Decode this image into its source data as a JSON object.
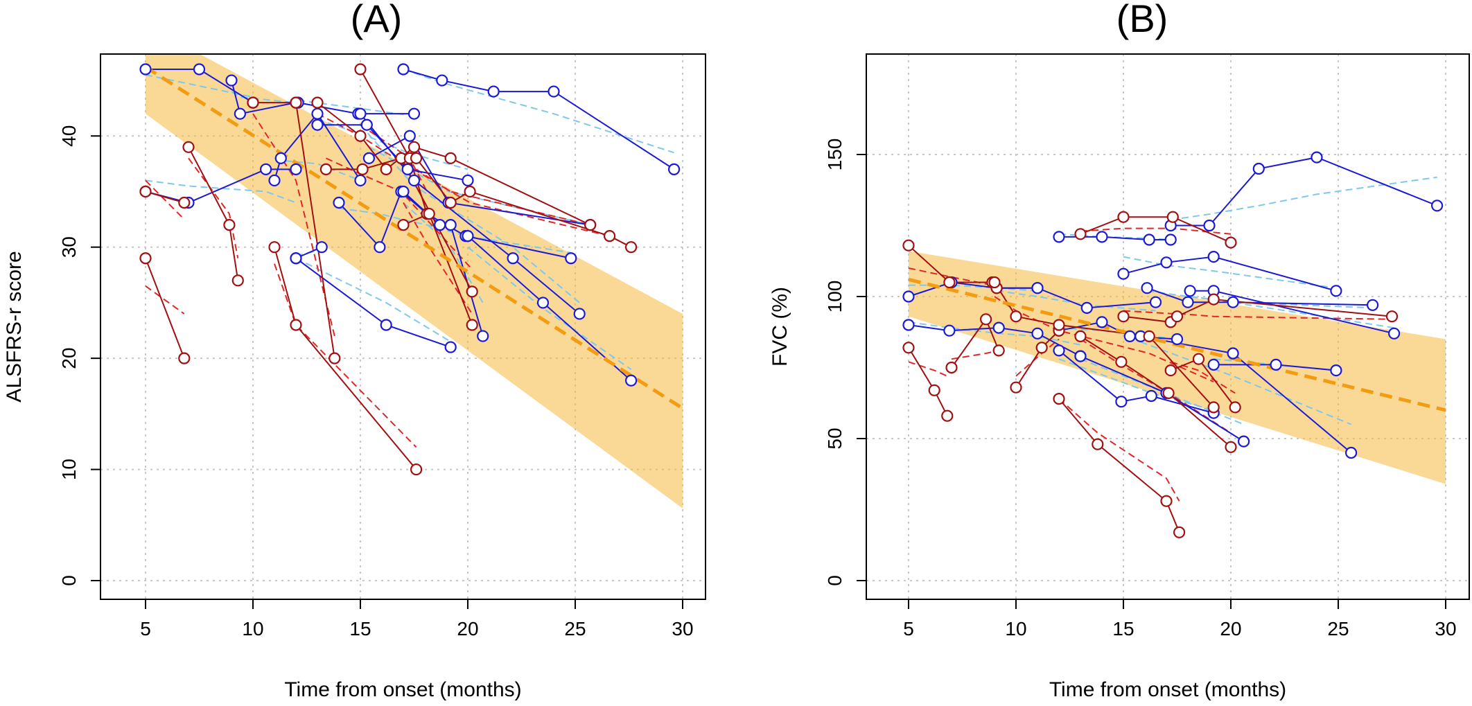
{
  "colors": {
    "band": "#f5b942",
    "trend": "#f39c12",
    "blue_obs": "#1a1ad6",
    "blue_fit": "#7ec8ec",
    "red_obs": "#a01010",
    "red_fit": "#e02626"
  },
  "chart_data": [
    {
      "type": "line",
      "title": "(A)",
      "xlabel": "Time from onset (months)",
      "ylabel": "ALSFRS-r score",
      "xlim": [
        5,
        30
      ],
      "ylim": [
        0,
        46
      ],
      "xticks": [
        5,
        10,
        15,
        20,
        25,
        30
      ],
      "yticks": [
        0,
        10,
        20,
        30,
        40
      ],
      "grid": true,
      "band": {
        "x": [
          5,
          30
        ],
        "lower": [
          42,
          6.5
        ],
        "upper": [
          50,
          24
        ]
      },
      "trend": {
        "x": [
          5,
          30
        ],
        "y": [
          46.2,
          15.5
        ]
      },
      "subjects": [
        {
          "group": "blue",
          "x": [
            5,
            7.5,
            10
          ],
          "y": [
            46,
            46,
            43
          ],
          "fit": [
            45.5,
            44.5,
            43.5
          ]
        },
        {
          "group": "blue",
          "x": [
            9,
            9.4,
            12
          ],
          "y": [
            45,
            42,
            43
          ],
          "fit": [
            44,
            43.5,
            43
          ]
        },
        {
          "group": "blue",
          "x": [
            12.1,
            14.9,
            17.5
          ],
          "y": [
            43,
            42,
            42
          ],
          "fit": [
            43.2,
            42.5,
            41.8
          ]
        },
        {
          "group": "blue",
          "x": [
            17,
            18.8,
            21.2,
            24,
            29.6
          ],
          "y": [
            46,
            45,
            44,
            44,
            37
          ],
          "fit": [
            46,
            44.8,
            43.5,
            42,
            38.5
          ]
        },
        {
          "group": "blue",
          "x": [
            13,
            15.3,
            17.2,
            20
          ],
          "y": [
            41,
            41,
            37,
            36
          ],
          "fit": [
            41.5,
            40,
            38.5,
            37
          ]
        },
        {
          "group": "blue",
          "x": [
            11,
            11.3,
            13,
            15
          ],
          "y": [
            36,
            38,
            42,
            36
          ],
          "fit": [
            38,
            37.8,
            37.5,
            36
          ]
        },
        {
          "group": "blue",
          "x": [
            5,
            7,
            10.6,
            12
          ],
          "y": [
            35,
            34,
            37,
            37
          ],
          "fit": [
            36,
            35.5,
            35,
            34
          ]
        },
        {
          "group": "blue",
          "x": [
            15.4,
            17.3,
            19.1,
            25.7
          ],
          "y": [
            38,
            40,
            34,
            32
          ],
          "fit": [
            39,
            37,
            35,
            32
          ]
        },
        {
          "group": "blue",
          "x": [
            14,
            15.9,
            16.9,
            18.1,
            19.9,
            24.8
          ],
          "y": [
            34,
            30,
            35,
            33,
            31,
            29
          ],
          "fit": [
            33.5,
            33,
            32.5,
            32,
            31,
            29.5
          ]
        },
        {
          "group": "blue",
          "x": [
            12,
            13.2
          ],
          "y": [
            29,
            30
          ],
          "fit": [
            29.2,
            29.8
          ]
        },
        {
          "group": "blue",
          "x": [
            12,
            16.2,
            19.2
          ],
          "y": [
            29,
            23,
            21
          ],
          "fit": [
            29,
            25,
            21.5
          ]
        },
        {
          "group": "blue",
          "x": [
            17,
            18.7,
            19.2,
            20.7
          ],
          "y": [
            35,
            32,
            32,
            22
          ],
          "fit": [
            34,
            31,
            30,
            25
          ]
        },
        {
          "group": "blue",
          "x": [
            15,
            17.5,
            22.1,
            25.2
          ],
          "y": [
            42,
            36,
            29,
            24
          ],
          "fit": [
            41,
            35.5,
            30,
            25
          ]
        },
        {
          "group": "blue",
          "x": [
            20,
            23.5,
            27.6
          ],
          "y": [
            31,
            25,
            18
          ],
          "fit": [
            30,
            24.5,
            19
          ]
        },
        {
          "group": "red",
          "x": [
            5,
            6.8
          ],
          "y": [
            29,
            20
          ],
          "fit": [
            26.5,
            24
          ]
        },
        {
          "group": "red",
          "x": [
            5,
            6.8
          ],
          "y": [
            35,
            34
          ],
          "fit": [
            36,
            32.5
          ]
        },
        {
          "group": "red",
          "x": [
            7,
            8.9,
            9.3
          ],
          "y": [
            39,
            32,
            27
          ],
          "fit": [
            38,
            33,
            29
          ]
        },
        {
          "group": "red",
          "x": [
            10,
            12,
            13.8
          ],
          "y": [
            43,
            43,
            20
          ],
          "fit": [
            42,
            36,
            22
          ]
        },
        {
          "group": "red",
          "x": [
            11,
            12,
            17.6
          ],
          "y": [
            30,
            23,
            10
          ],
          "fit": [
            28.5,
            23,
            12
          ]
        },
        {
          "group": "red",
          "x": [
            13,
            15,
            16.2,
            17.5,
            19.2,
            25.7
          ],
          "y": [
            43,
            40,
            37,
            39,
            38,
            32
          ],
          "fit": [
            42,
            40,
            38.5,
            37,
            35,
            32
          ]
        },
        {
          "group": "red",
          "x": [
            13.4,
            15.1,
            16.9,
            20.2
          ],
          "y": [
            37,
            37,
            38,
            26
          ],
          "fit": [
            38,
            36.5,
            35,
            28
          ]
        },
        {
          "group": "red",
          "x": [
            15,
            17.3,
            18.1
          ],
          "y": [
            46,
            38,
            33
          ],
          "fit": [
            41,
            38,
            35
          ]
        },
        {
          "group": "red",
          "x": [
            17,
            18.2,
            20.2
          ],
          "y": [
            32,
            33,
            23
          ],
          "fit": [
            34,
            30,
            24
          ]
        },
        {
          "group": "red",
          "x": [
            17.6,
            19.2,
            20.1,
            26.6,
            27.6
          ],
          "y": [
            38,
            34,
            35,
            31,
            30
          ],
          "fit": [
            37,
            35,
            34,
            31,
            30
          ]
        }
      ]
    },
    {
      "type": "line",
      "title": "(B)",
      "xlabel": "Time from onset (months)",
      "ylabel": "FVC (%)",
      "xlim": [
        5,
        30
      ],
      "ylim": [
        0,
        180
      ],
      "xticks": [
        5,
        10,
        15,
        20,
        25,
        30
      ],
      "yticks": [
        0,
        50,
        100,
        150
      ],
      "grid": true,
      "band": {
        "x": [
          5,
          30
        ],
        "lower": [
          93,
          34
        ],
        "upper": [
          116,
          85
        ]
      },
      "trend": {
        "x": [
          5,
          30
        ],
        "y": [
          106,
          60
        ]
      },
      "subjects": [
        {
          "group": "blue",
          "x": [
            12,
            14,
            16.2,
            17.2
          ],
          "y": [
            121,
            121,
            120,
            120
          ],
          "fit": [
            122,
            121,
            120.5,
            120
          ]
        },
        {
          "group": "blue",
          "x": [
            17.2,
            19,
            21.3,
            24,
            29.6
          ],
          "y": [
            125,
            125,
            145,
            149,
            132
          ],
          "fit": [
            127,
            129,
            132,
            136,
            142
          ]
        },
        {
          "group": "blue",
          "x": [
            15,
            17,
            19.2,
            24.9
          ],
          "y": [
            108,
            112,
            114,
            102
          ],
          "fit": [
            114,
            111,
            109,
            103
          ]
        },
        {
          "group": "blue",
          "x": [
            5,
            7,
            9.1,
            11
          ],
          "y": [
            100,
            105,
            103,
            103
          ],
          "fit": [
            104,
            104,
            103,
            102
          ]
        },
        {
          "group": "blue",
          "x": [
            9.1,
            11,
            13.3,
            16.5
          ],
          "y": [
            103,
            103,
            96,
            98
          ],
          "fit": [
            102,
            100,
            97,
            95
          ]
        },
        {
          "group": "blue",
          "x": [
            16.1,
            18,
            20.1,
            26.6
          ],
          "y": [
            103,
            98,
            98,
            97
          ],
          "fit": [
            102,
            100,
            98,
            96
          ]
        },
        {
          "group": "blue",
          "x": [
            18.1,
            19.2,
            27.6
          ],
          "y": [
            102,
            102,
            87
          ],
          "fit": [
            100,
            99,
            89
          ]
        },
        {
          "group": "blue",
          "x": [
            5,
            6.9,
            9.2,
            11,
            13
          ],
          "y": [
            90,
            88,
            89,
            87,
            79
          ],
          "fit": [
            91,
            89,
            87,
            86,
            83
          ]
        },
        {
          "group": "blue",
          "x": [
            12,
            14,
            15.3,
            17.5
          ],
          "y": [
            88,
            91,
            86,
            85
          ],
          "fit": [
            89,
            88,
            87,
            85
          ]
        },
        {
          "group": "blue",
          "x": [
            12,
            14.9,
            16.3,
            19.2
          ],
          "y": [
            81,
            63,
            65,
            59
          ],
          "fit": [
            78,
            70,
            66,
            60
          ]
        },
        {
          "group": "blue",
          "x": [
            13,
            17,
            20.6
          ],
          "y": [
            79,
            66,
            49
          ],
          "fit": [
            78,
            66,
            55
          ]
        },
        {
          "group": "blue",
          "x": [
            19.2,
            22.1,
            24.9
          ],
          "y": [
            76,
            76,
            74
          ],
          "fit": [
            78,
            76,
            74
          ]
        },
        {
          "group": "blue",
          "x": [
            15.8,
            20.1,
            25.6
          ],
          "y": [
            86,
            80,
            45
          ],
          "fit": [
            84,
            72,
            55
          ]
        },
        {
          "group": "red",
          "x": [
            13,
            15,
            17.3,
            20
          ],
          "y": [
            122,
            128,
            128,
            119
          ],
          "fit": [
            123,
            124,
            124,
            122
          ]
        },
        {
          "group": "red",
          "x": [
            15,
            17.2,
            17.5,
            19.2,
            27.5
          ],
          "y": [
            93,
            91,
            93,
            99,
            93
          ],
          "fit": [
            95,
            94,
            94,
            93,
            92
          ]
        },
        {
          "group": "red",
          "x": [
            5,
            6.9,
            8.9,
            9.1
          ],
          "y": [
            118,
            105,
            105,
            103
          ],
          "fit": [
            110,
            107,
            104,
            103
          ]
        },
        {
          "group": "red",
          "x": [
            5,
            6.2,
            6.8
          ],
          "y": [
            82,
            67,
            58
          ],
          "fit": [
            77,
            74,
            72
          ]
        },
        {
          "group": "red",
          "x": [
            7,
            8.6,
            9.2
          ],
          "y": [
            75,
            92,
            81
          ],
          "fit": [
            78,
            80,
            81
          ]
        },
        {
          "group": "red",
          "x": [
            10,
            11.2,
            12
          ],
          "y": [
            68,
            82,
            88
          ],
          "fit": [
            72,
            80,
            85
          ]
        },
        {
          "group": "red",
          "x": [
            9,
            10,
            12,
            16.2,
            19.2
          ],
          "y": [
            105,
            93,
            90,
            86,
            61
          ],
          "fit": [
            100,
            95,
            88,
            80,
            70
          ]
        },
        {
          "group": "red",
          "x": [
            12,
            13.8,
            17,
            17.6
          ],
          "y": [
            64,
            48,
            28,
            17
          ],
          "fit": [
            64,
            52,
            36,
            28
          ]
        },
        {
          "group": "red",
          "x": [
            13,
            14.9,
            17.1,
            20
          ],
          "y": [
            86,
            77,
            66,
            47
          ],
          "fit": [
            85,
            76,
            66,
            52
          ]
        },
        {
          "group": "red",
          "x": [
            17.2,
            18.5,
            20.2
          ],
          "y": [
            74,
            78,
            61
          ],
          "fit": [
            77,
            74,
            66
          ]
        }
      ]
    }
  ]
}
